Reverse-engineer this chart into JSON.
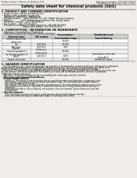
{
  "background_color": "#f0ede8",
  "header_left": "Product name: Lithium Ion Battery Cell",
  "header_right_line1": "Substance number: 999-049-00619",
  "header_right_line2": "Established / Revision: Dec.7.2010",
  "title": "Safety data sheet for chemical products (SDS)",
  "section1_title": "1. PRODUCT AND COMPANY IDENTIFICATION",
  "section1_lines": [
    " • Product name: Lithium Ion Battery Cell",
    " • Product code: Cylindrical-type cell",
    "    INR18650J, INR18650L, INR18650A",
    " • Company name:    Sanyo Electric Co., Ltd., Mobile Energy Company",
    " • Address:            2001  Kamikosawa, Sumoto-City, Hyogo, Japan",
    " • Telephone number:  +81-799-26-4111",
    " • Fax number:  +81-799-26-4120",
    " • Emergency telephone number (daytime): +81-799-26-3962",
    "                               (Night and holiday): +81-799-26-4101"
  ],
  "section2_title": "2. COMPOSITION / INFORMATION ON INGREDIENTS",
  "section2_intro": " • Substance or preparation: Preparation",
  "section2_sub": " • Information about the chemical nature of product:",
  "table_headers": [
    "Chemical name",
    "CAS number",
    "Concentration /\nConcentration range",
    "Classification and\nhazard labeling"
  ],
  "table_rows": [
    [
      "Lithium cobalt oxide\n(LiMnCo)(O)",
      "-",
      "30-60%",
      "-"
    ],
    [
      "Iron",
      "7439-89-6",
      "10-20%",
      "-"
    ],
    [
      "Aluminum",
      "7429-90-5",
      "0-5%",
      "-"
    ],
    [
      "Graphite\n(listed as graphite-1)\n(as listed as graphite-2)",
      "17799-62-5\n17799-44-02",
      "10-20%",
      "-"
    ],
    [
      "Copper",
      "7440-50-8",
      "0-10%",
      "Sensitization of the skin\ngroup No.2"
    ],
    [
      "Organic electrolyte",
      "-",
      "10-20%",
      "Inflammable liquid"
    ]
  ],
  "section3_title": "3. HAZARDS IDENTIFICATION",
  "section3_lines": [
    "   For this battery cell, chemical materials are stored in a hermetically sealed metal case, designed to withstand",
    "temperatures and pressures-combinations during normal use. As a result, during normal use, there is no",
    "physical danger of ignition or explosion and there is no danger of hazardous material leakage.",
    "   However, if exposed to a fire added mechanical shocks, decomposed, ambient electric affects my occur use.",
    "As gas release cannot be operated, The battery cell case will be breached at the extreme. hazardous",
    "materials may be released.",
    "   Moreover, if heated strongly by the surrounding fire, some gas may be emitted."
  ],
  "section3_bullet1": " • Most important hazard and effects:",
  "section3_human": "   Human health effects:",
  "section3_human_lines": [
    "      Inhalation: The release of the electrolyte has an anesthetize action and stimulates a respiratory tract.",
    "      Skin contact: The release of the electrolyte stimulates a skin. The electrolyte skin contact causes a",
    "      sore and stimulation on the skin.",
    "      Eye contact: The release of the electrolyte stimulates eyes. The electrolyte eye contact causes a sore",
    "      and stimulation on the eye. Especially, a substance that causes a strong inflammation of the eye is",
    "      contained.",
    "      Environmental effects: Since a battery cell remains in the environment, do not throw out it into the",
    "      environment."
  ],
  "section3_bullet2": " • Specific hazards:",
  "section3_specific_lines": [
    "      If the electrolyte contacts with water, it will generate detrimental hydrogen fluoride.",
    "      Since the used electrolyte is inflammable liquid, do not bring close to fire."
  ]
}
